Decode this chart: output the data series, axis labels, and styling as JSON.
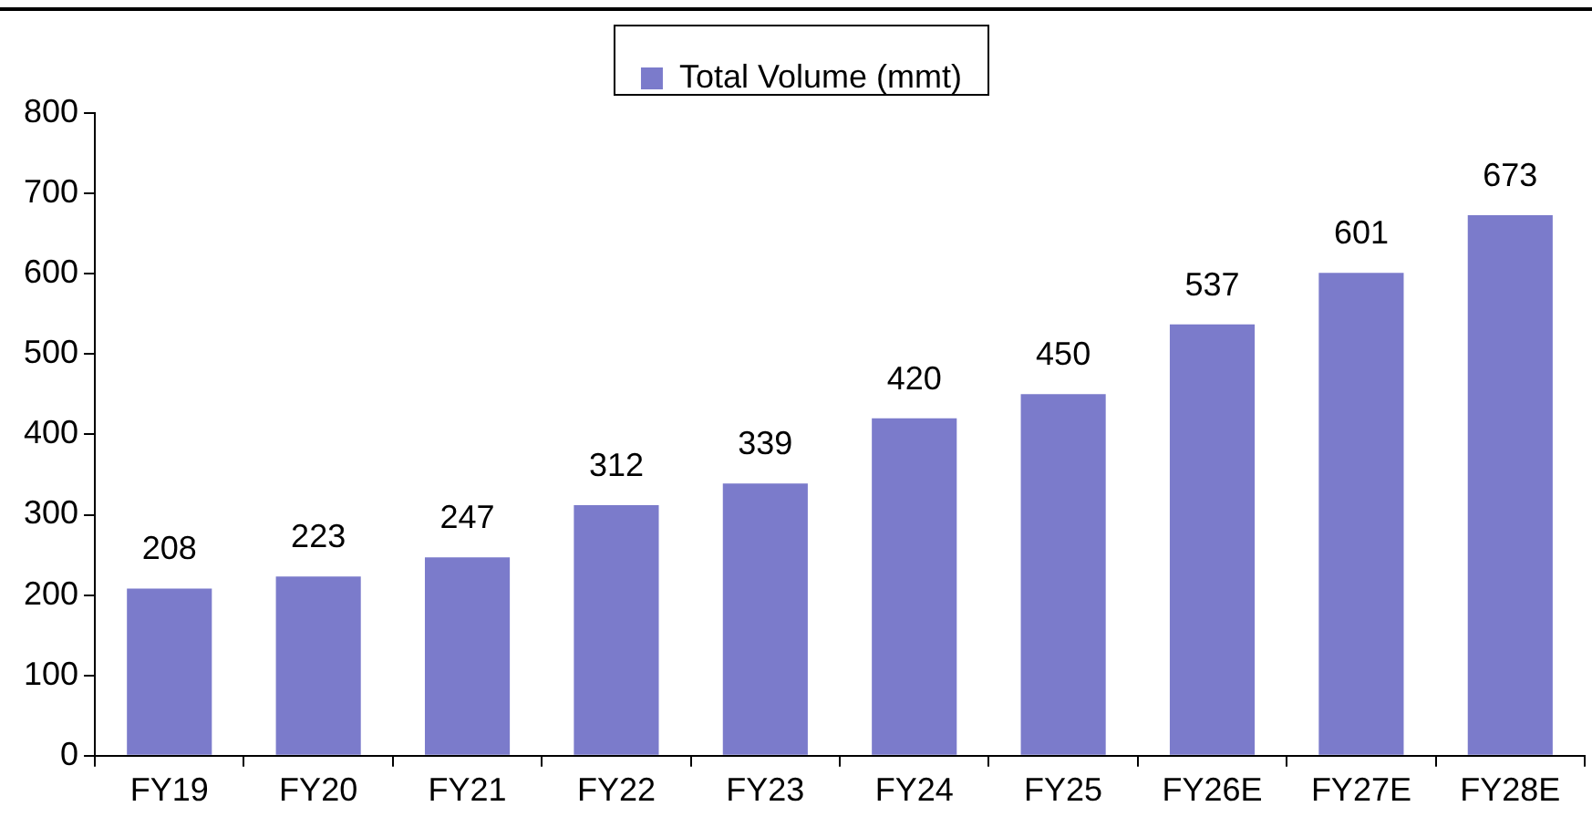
{
  "chart_data": {
    "type": "bar",
    "categories": [
      "FY19",
      "FY20",
      "FY21",
      "FY22",
      "FY23",
      "FY24",
      "FY25",
      "FY26E",
      "FY27E",
      "FY28E"
    ],
    "series": [
      {
        "name": "Total Volume (mmt)",
        "color": "#7b7bcb",
        "values": [
          208,
          223,
          247,
          312,
          339,
          420,
          450,
          537,
          601,
          673
        ]
      }
    ],
    "ylim": [
      0,
      800
    ],
    "yticks": [
      0,
      100,
      200,
      300,
      400,
      500,
      600,
      700,
      800
    ],
    "grid": false,
    "legend": "top",
    "data_labels": true
  }
}
